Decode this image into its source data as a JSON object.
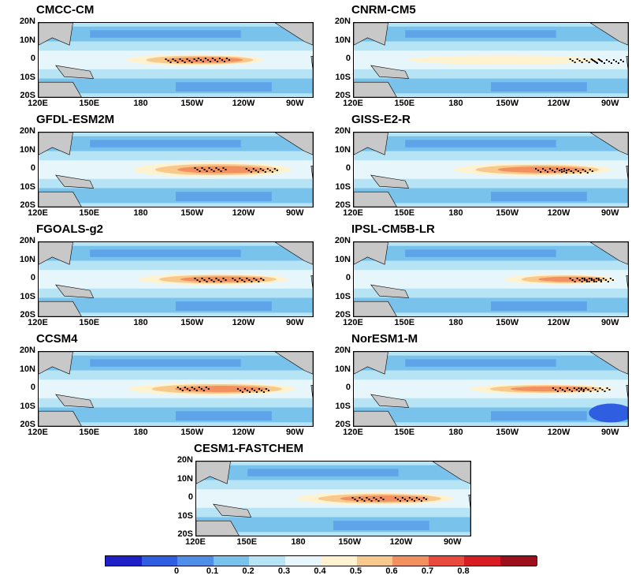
{
  "panels": [
    {
      "title": "CMCC-CM",
      "tongue_lon": [
        162,
        255
      ],
      "strength": 0.8,
      "width": 1.0,
      "dots": [
        [
          157,
          0
        ],
        [
          138,
          -1
        ]
      ],
      "cold_se": false
    },
    {
      "title": "CNRM-CM5",
      "tongue_lon": [
        140,
        270
      ],
      "strength": 0.55,
      "width": 0.8,
      "dots": [
        [
          105,
          0
        ],
        [
          92,
          1
        ]
      ],
      "cold_se": false
    },
    {
      "title": "GFDL-ESM2M",
      "tongue_lon": [
        165,
        272
      ],
      "strength": 0.8,
      "width": 1.3,
      "dots": [
        [
          140,
          -1
        ],
        [
          110,
          0
        ]
      ],
      "cold_se": false
    },
    {
      "title": "GISS-E2-R",
      "tongue_lon": [
        168,
        275
      ],
      "strength": 0.8,
      "width": 1.1,
      "dots": [
        [
          125,
          0
        ],
        [
          110,
          1
        ]
      ],
      "cold_se": false
    },
    {
      "title": "FGOALS-g2",
      "tongue_lon": [
        168,
        270
      ],
      "strength": 0.82,
      "width": 1.0,
      "dots": [
        [
          140,
          0
        ],
        [
          118,
          0
        ]
      ],
      "cold_se": false
    },
    {
      "title": "IPSL-CM5B-LR",
      "tongue_lon": [
        200,
        275
      ],
      "strength": 0.75,
      "width": 0.9,
      "dots": [
        [
          105,
          0
        ],
        [
          98,
          0
        ]
      ],
      "cold_se": false
    },
    {
      "title": "CCSM4",
      "tongue_lon": [
        162,
        275
      ],
      "strength": 0.82,
      "width": 1.1,
      "dots": [
        [
          150,
          -1
        ],
        [
          115,
          1
        ]
      ],
      "cold_se": false
    },
    {
      "title": "NorESM1-M",
      "tongue_lon": [
        178,
        275
      ],
      "strength": 0.78,
      "width": 0.9,
      "dots": [
        [
          115,
          0
        ],
        [
          100,
          0
        ]
      ],
      "cold_se": true
    },
    {
      "title": "CESM1-FASTCHEM",
      "tongue_lon": [
        168,
        275
      ],
      "strength": 0.8,
      "width": 1.1,
      "dots": [
        [
          140,
          0
        ],
        [
          115,
          0
        ]
      ],
      "cold_se": false
    }
  ],
  "y_ticks": [
    "20N",
    "10N",
    "0",
    "10S",
    "20S"
  ],
  "x_ticks": [
    "120E",
    "150E",
    "180",
    "150W",
    "120W",
    "90W"
  ],
  "colorbar": {
    "colors": [
      "#2020c8",
      "#2f5fe0",
      "#4f8ee8",
      "#78c2ec",
      "#b6e4f4",
      "#e6f6fb",
      "#fff2d0",
      "#f8c98c",
      "#f3905f",
      "#e84a3e",
      "#d81c24",
      "#9e0f1e"
    ],
    "labels": [
      "0",
      "0.1",
      "0.2",
      "0.3",
      "0.4",
      "0.5",
      "0.6",
      "0.7",
      "0.8"
    ]
  }
}
